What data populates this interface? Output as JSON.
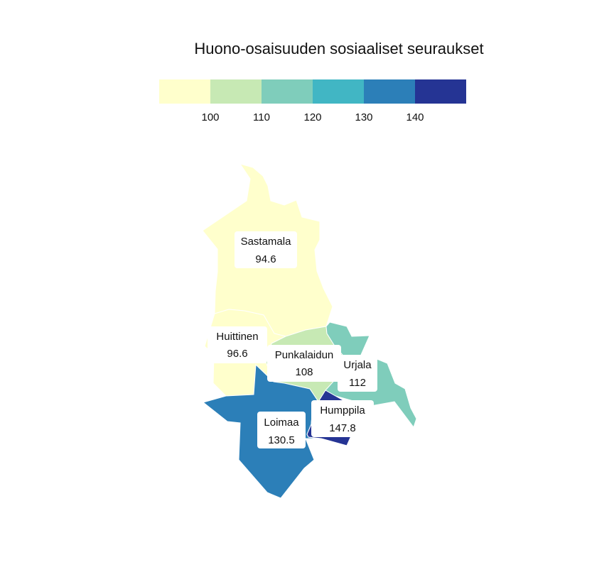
{
  "title": "Huono-osaisuuden sosiaaliset seuraukset",
  "legend": {
    "colors": [
      "#ffffcc",
      "#c7e9b4",
      "#7fcdbb",
      "#41b6c4",
      "#2c7fb8",
      "#253494"
    ],
    "ticks": [
      "100",
      "110",
      "120",
      "130",
      "140"
    ]
  },
  "regions": [
    {
      "name": "Sastamala",
      "value": "94.6",
      "color": "#ffffcc"
    },
    {
      "name": "Huittinen",
      "value": "96.6",
      "color": "#ffffcc"
    },
    {
      "name": "Punkalaidun",
      "value": "108",
      "color": "#c7e9b4"
    },
    {
      "name": "Urjala",
      "value": "112",
      "color": "#7fcdbb"
    },
    {
      "name": "Loimaa",
      "value": "130.5",
      "color": "#2c7fb8"
    },
    {
      "name": "Humppila",
      "value": "147.8",
      "color": "#253494"
    }
  ]
}
